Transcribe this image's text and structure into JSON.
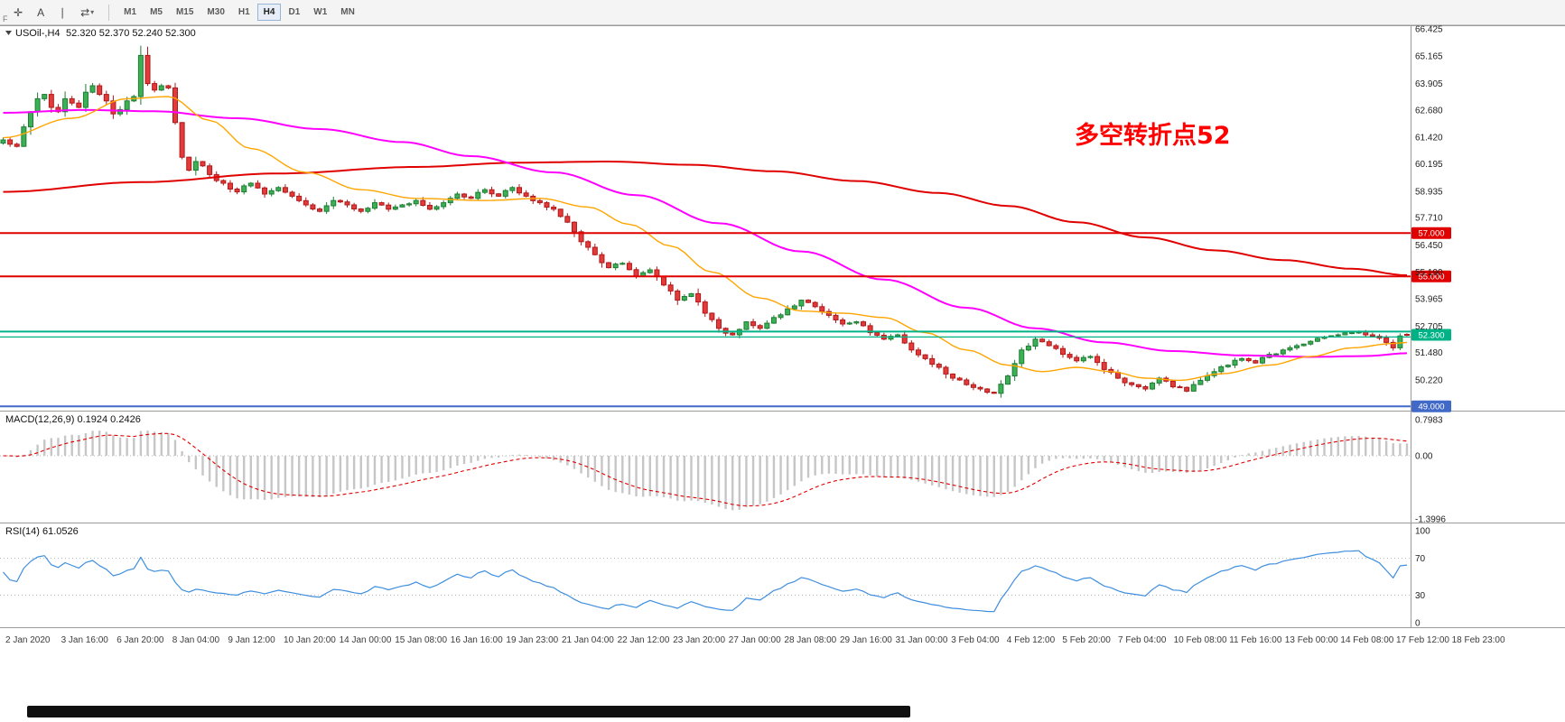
{
  "toolbar": {
    "tools": [
      {
        "id": "crosshair-tool",
        "glyph": "✛",
        "caret": false
      },
      {
        "id": "text-label-tool",
        "glyph": "A",
        "caret": false
      },
      {
        "id": "vertical-line-tool",
        "glyph": "∣",
        "caret": false
      },
      {
        "id": "cycle-symbols-tool",
        "glyph": "⇄",
        "caret": true
      }
    ],
    "timeframes": [
      "M1",
      "M5",
      "M15",
      "M30",
      "H1",
      "H4",
      "D1",
      "W1",
      "MN"
    ],
    "active_timeframe": "H4",
    "corner_label": "F"
  },
  "main_chart": {
    "title": "USOil-,H4",
    "ohlc": "52.320 52.370 52.240 52.300",
    "annotation": {
      "text": "多空转折点52",
      "color": "#FF0000"
    },
    "price_axis_labels": [
      "66.425",
      "65.165",
      "63.905",
      "62.680",
      "61.420",
      "60.195",
      "58.935",
      "57.710",
      "56.450",
      "55.190",
      "53.965",
      "52.705",
      "51.480",
      "50.220"
    ],
    "lines": [
      {
        "price": 57.0,
        "label": "57.000",
        "color": "#E00000",
        "width": 2
      },
      {
        "price": 55.0,
        "label": "55.000",
        "color": "#E00000",
        "width": 2
      },
      {
        "price": 52.45,
        "label": null,
        "color": "#00B386",
        "width": 2
      },
      {
        "price": 52.2,
        "label": null,
        "color": "#00B386",
        "width": 1.2
      },
      {
        "price": 49.0,
        "label": "49.000",
        "color": "#4169C8",
        "width": 2
      }
    ],
    "current_price_badge": {
      "label": "52.300",
      "price": 52.3,
      "color": "#00B386"
    },
    "colors": {
      "bull_fill": "#3CB054",
      "bull_border": "#1E7C34",
      "bear_fill": "#E23B3B",
      "bear_border": "#B01818",
      "ma_red": "#E00000",
      "ma_magenta": "#FF00FF",
      "ma_orange": "#FFA500"
    }
  },
  "macd_panel": {
    "label": "MACD(12,26,9) 0.1924 0.2426",
    "axis_labels": [
      "0.7983",
      "0.00",
      "-1.3996"
    ],
    "histogram_color": "#C6C6C6",
    "signal_color": "#E00000"
  },
  "rsi_panel": {
    "label": "RSI(14) 61.0526",
    "axis_labels": [
      "100",
      "70",
      "30",
      "0"
    ],
    "levels": [
      70,
      30
    ],
    "line_color": "#3E8EDE"
  },
  "time_axis": {
    "labels": [
      "2 Jan 2020",
      "3 Jan 16:00",
      "6 Jan 20:00",
      "8 Jan 04:00",
      "9 Jan 12:00",
      "10 Jan 20:00",
      "14 Jan 00:00",
      "15 Jan 08:00",
      "16 Jan 16:00",
      "19 Jan 23:00",
      "21 Jan 04:00",
      "22 Jan 12:00",
      "23 Jan 20:00",
      "27 Jan 00:00",
      "28 Jan 08:00",
      "29 Jan 16:00",
      "31 Jan 00:00",
      "3 Feb 04:00",
      "4 Feb 12:00",
      "5 Feb 20:00",
      "7 Feb 04:00",
      "10 Feb 08:00",
      "11 Feb 16:00",
      "13 Feb 00:00",
      "14 Feb 08:00",
      "17 Feb 12:00",
      "18 Feb 23:00"
    ]
  },
  "chart_data": {
    "type": "candlestick",
    "symbol": "USOil",
    "timeframe": "H4",
    "bars": 205,
    "price_range": [
      48.8,
      66.5
    ],
    "last_bar": {
      "open": 52.32,
      "high": 52.37,
      "low": 52.24,
      "close": 52.3
    },
    "spike_high": 65.65,
    "close_keyframes": [
      [
        0,
        61.3
      ],
      [
        1,
        61.1
      ],
      [
        2,
        61.0
      ],
      [
        3,
        61.9
      ],
      [
        4,
        62.6
      ],
      [
        5,
        63.2
      ],
      [
        6,
        63.4
      ],
      [
        7,
        62.8
      ],
      [
        8,
        62.6
      ],
      [
        9,
        63.2
      ],
      [
        10,
        63.0
      ],
      [
        11,
        62.8
      ],
      [
        12,
        63.5
      ],
      [
        13,
        63.8
      ],
      [
        14,
        63.4
      ],
      [
        15,
        63.1
      ],
      [
        16,
        62.5
      ],
      [
        17,
        62.7
      ],
      [
        18,
        63.1
      ],
      [
        19,
        63.3
      ],
      [
        20,
        65.2
      ],
      [
        21,
        63.9
      ],
      [
        22,
        63.6
      ],
      [
        23,
        63.8
      ],
      [
        24,
        63.7
      ],
      [
        25,
        62.1
      ],
      [
        26,
        60.5
      ],
      [
        27,
        59.9
      ],
      [
        28,
        60.3
      ],
      [
        29,
        60.1
      ],
      [
        30,
        59.7
      ],
      [
        32,
        59.3
      ],
      [
        34,
        58.9
      ],
      [
        36,
        59.3
      ],
      [
        38,
        58.8
      ],
      [
        40,
        59.1
      ],
      [
        42,
        58.7
      ],
      [
        44,
        58.3
      ],
      [
        46,
        58.0
      ],
      [
        48,
        58.5
      ],
      [
        50,
        58.3
      ],
      [
        52,
        58.0
      ],
      [
        54,
        58.4
      ],
      [
        56,
        58.1
      ],
      [
        58,
        58.3
      ],
      [
        60,
        58.5
      ],
      [
        62,
        58.1
      ],
      [
        64,
        58.4
      ],
      [
        66,
        58.8
      ],
      [
        68,
        58.6
      ],
      [
        70,
        59.0
      ],
      [
        72,
        58.7
      ],
      [
        74,
        59.1
      ],
      [
        76,
        58.7
      ],
      [
        78,
        58.4
      ],
      [
        80,
        58.1
      ],
      [
        82,
        57.5
      ],
      [
        84,
        56.6
      ],
      [
        86,
        56.0
      ],
      [
        88,
        55.4
      ],
      [
        90,
        55.6
      ],
      [
        92,
        55.0
      ],
      [
        94,
        55.3
      ],
      [
        96,
        54.6
      ],
      [
        98,
        53.9
      ],
      [
        100,
        54.2
      ],
      [
        102,
        53.3
      ],
      [
        104,
        52.6
      ],
      [
        106,
        52.3
      ],
      [
        108,
        52.9
      ],
      [
        110,
        52.6
      ],
      [
        112,
        53.1
      ],
      [
        114,
        53.5
      ],
      [
        116,
        53.9
      ],
      [
        118,
        53.6
      ],
      [
        120,
        53.2
      ],
      [
        122,
        52.8
      ],
      [
        124,
        52.9
      ],
      [
        126,
        52.4
      ],
      [
        128,
        52.1
      ],
      [
        130,
        52.3
      ],
      [
        132,
        51.6
      ],
      [
        134,
        51.2
      ],
      [
        136,
        50.8
      ],
      [
        138,
        50.3
      ],
      [
        140,
        50.0
      ],
      [
        142,
        49.8
      ],
      [
        144,
        49.6
      ],
      [
        146,
        50.4
      ],
      [
        148,
        51.6
      ],
      [
        150,
        52.1
      ],
      [
        152,
        51.8
      ],
      [
        154,
        51.4
      ],
      [
        156,
        51.1
      ],
      [
        158,
        51.3
      ],
      [
        160,
        50.7
      ],
      [
        162,
        50.3
      ],
      [
        164,
        50.0
      ],
      [
        166,
        49.8
      ],
      [
        168,
        50.3
      ],
      [
        170,
        49.9
      ],
      [
        172,
        49.7
      ],
      [
        174,
        50.2
      ],
      [
        176,
        50.6
      ],
      [
        178,
        50.9
      ],
      [
        180,
        51.2
      ],
      [
        182,
        51.0
      ],
      [
        184,
        51.4
      ],
      [
        186,
        51.6
      ],
      [
        188,
        51.8
      ],
      [
        190,
        52.0
      ],
      [
        192,
        52.2
      ],
      [
        194,
        52.3
      ],
      [
        196,
        52.4
      ],
      [
        198,
        52.3
      ],
      [
        200,
        52.15
      ],
      [
        201,
        51.95
      ],
      [
        202,
        51.7
      ],
      [
        203,
        52.25
      ],
      [
        204,
        52.3
      ]
    ],
    "moving_averages": [
      {
        "name": "slow-ma",
        "color_key": "ma_red",
        "width": 2,
        "keyframes": [
          [
            0,
            58.9
          ],
          [
            20,
            59.35
          ],
          [
            40,
            59.75
          ],
          [
            60,
            60.05
          ],
          [
            75,
            60.25
          ],
          [
            88,
            60.3
          ],
          [
            100,
            60.15
          ],
          [
            112,
            59.85
          ],
          [
            124,
            59.4
          ],
          [
            136,
            58.85
          ],
          [
            146,
            58.25
          ],
          [
            156,
            57.5
          ],
          [
            166,
            56.8
          ],
          [
            176,
            56.2
          ],
          [
            186,
            55.75
          ],
          [
            196,
            55.35
          ],
          [
            204,
            55.05
          ]
        ]
      },
      {
        "name": "medium-ma",
        "color_key": "ma_magenta",
        "width": 2,
        "keyframes": [
          [
            0,
            62.55
          ],
          [
            12,
            62.68
          ],
          [
            22,
            62.62
          ],
          [
            34,
            62.3
          ],
          [
            46,
            61.8
          ],
          [
            58,
            61.2
          ],
          [
            68,
            60.55
          ],
          [
            80,
            59.8
          ],
          [
            92,
            58.75
          ],
          [
            104,
            57.45
          ],
          [
            116,
            56.15
          ],
          [
            128,
            54.85
          ],
          [
            140,
            53.55
          ],
          [
            150,
            52.6
          ],
          [
            160,
            51.95
          ],
          [
            170,
            51.55
          ],
          [
            180,
            51.35
          ],
          [
            190,
            51.28
          ],
          [
            198,
            51.32
          ],
          [
            204,
            51.45
          ]
        ]
      },
      {
        "name": "fast-ma",
        "color_key": "ma_orange",
        "width": 1.4,
        "keyframes": [
          [
            0,
            61.4
          ],
          [
            10,
            62.3
          ],
          [
            18,
            63.2
          ],
          [
            24,
            63.3
          ],
          [
            30,
            62.2
          ],
          [
            36,
            60.9
          ],
          [
            44,
            59.8
          ],
          [
            52,
            59.0
          ],
          [
            60,
            58.6
          ],
          [
            70,
            58.5
          ],
          [
            78,
            58.6
          ],
          [
            85,
            58.2
          ],
          [
            91,
            57.4
          ],
          [
            97,
            56.4
          ],
          [
            103,
            55.2
          ],
          [
            110,
            54.0
          ],
          [
            116,
            53.4
          ],
          [
            122,
            53.3
          ],
          [
            128,
            53.1
          ],
          [
            134,
            52.4
          ],
          [
            140,
            51.6
          ],
          [
            146,
            50.9
          ],
          [
            151,
            50.6
          ],
          [
            156,
            50.8
          ],
          [
            161,
            50.6
          ],
          [
            166,
            50.3
          ],
          [
            171,
            50.2
          ],
          [
            177,
            50.5
          ],
          [
            184,
            50.9
          ],
          [
            190,
            51.3
          ],
          [
            196,
            51.7
          ],
          [
            202,
            51.9
          ],
          [
            204,
            51.95
          ]
        ]
      }
    ],
    "macd_range": [
      0.7983,
      -1.3996
    ],
    "rsi_range": [
      0,
      100
    ]
  }
}
